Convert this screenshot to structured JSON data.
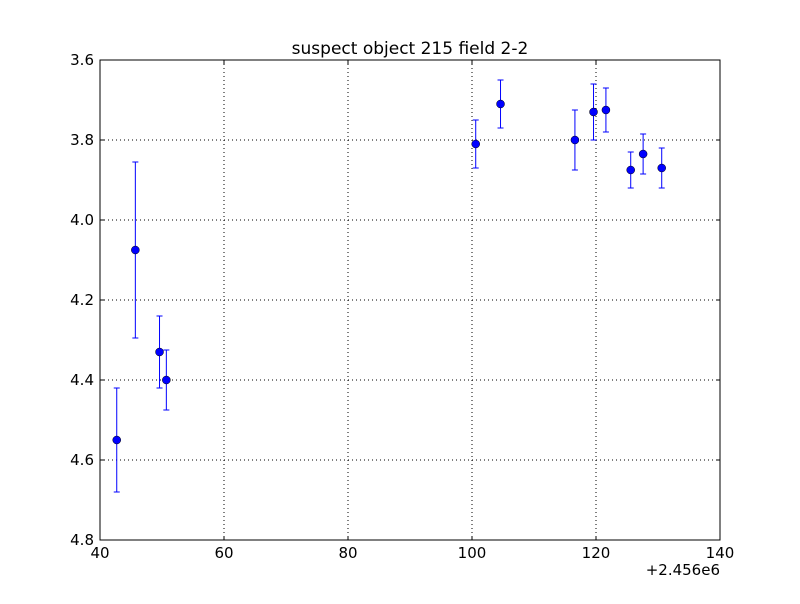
{
  "chart_data": {
    "type": "scatter",
    "title": "suspect object 215 field 2-2",
    "xlabel": "",
    "ylabel": "",
    "xlim": [
      40,
      140
    ],
    "ylim": [
      4.8,
      3.6
    ],
    "y_inverted": true,
    "x_offset_label": "+2.456e6",
    "x_ticks": [
      "40",
      "60",
      "80",
      "100",
      "120",
      "140"
    ],
    "x_tick_values": [
      40,
      60,
      80,
      100,
      120,
      140
    ],
    "y_ticks": [
      "3.6",
      "3.8",
      "4.0",
      "4.2",
      "4.4",
      "4.6",
      "4.8"
    ],
    "y_tick_values": [
      3.6,
      3.8,
      4.0,
      4.2,
      4.4,
      4.6,
      4.8
    ],
    "grid": true,
    "marker_color": "#0000ff",
    "series": [
      {
        "points": [
          {
            "x": 42.7,
            "y": 4.55,
            "err": 0.13
          },
          {
            "x": 45.7,
            "y": 4.075,
            "err": 0.22
          },
          {
            "x": 49.6,
            "y": 4.33,
            "err": 0.09
          },
          {
            "x": 50.7,
            "y": 4.4,
            "err": 0.075
          },
          {
            "x": 100.6,
            "y": 3.81,
            "err": 0.06
          },
          {
            "x": 104.6,
            "y": 3.71,
            "err": 0.06
          },
          {
            "x": 116.6,
            "y": 3.8,
            "err": 0.075
          },
          {
            "x": 119.6,
            "y": 3.73,
            "err": 0.07
          },
          {
            "x": 121.6,
            "y": 3.725,
            "err": 0.055
          },
          {
            "x": 125.6,
            "y": 3.875,
            "err": 0.045
          },
          {
            "x": 127.6,
            "y": 3.835,
            "err": 0.05
          },
          {
            "x": 130.6,
            "y": 3.87,
            "err": 0.05
          }
        ]
      }
    ]
  }
}
